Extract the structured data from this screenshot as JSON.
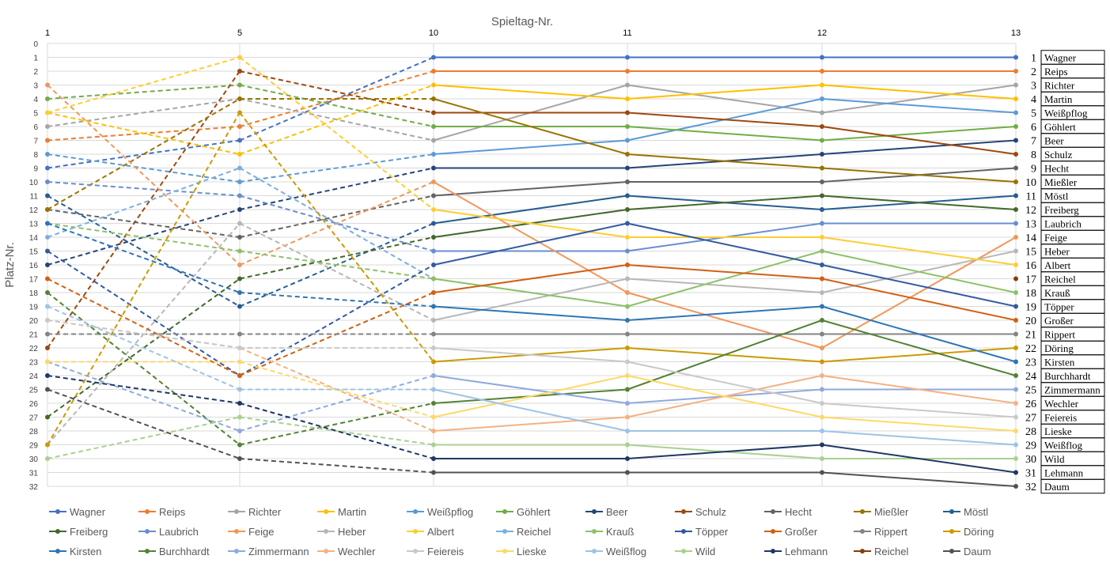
{
  "chart_data": {
    "type": "line",
    "title": "Spieltag-Nr.",
    "xlabel": "Spieltag-Nr.",
    "ylabel": "Platz-Nr.",
    "x": [
      1,
      5,
      10,
      11,
      12,
      13
    ],
    "x_tick_labels": [
      "1",
      "5",
      "10",
      "11",
      "12",
      "13"
    ],
    "ylim": [
      0,
      32
    ],
    "y_inverted": true,
    "y_ticks": [
      0,
      1,
      2,
      3,
      4,
      5,
      6,
      7,
      8,
      9,
      10,
      11,
      12,
      13,
      14,
      15,
      16,
      17,
      18,
      19,
      20,
      21,
      22,
      23,
      24,
      25,
      26,
      27,
      28,
      29,
      30,
      31,
      32
    ],
    "grid": true,
    "dashed_segments_until_x": 10,
    "legend_position": "bottom",
    "series": [
      {
        "name": "Wagner",
        "color": "#4472C4",
        "values": [
          9,
          7,
          1,
          1,
          1,
          1
        ]
      },
      {
        "name": "Reips",
        "color": "#ED7D31",
        "values": [
          7,
          6,
          2,
          2,
          2,
          2
        ]
      },
      {
        "name": "Richter",
        "color": "#A5A5A5",
        "values": [
          6,
          4,
          7,
          3,
          5,
          3
        ]
      },
      {
        "name": "Martin",
        "color": "#FFC000",
        "values": [
          5,
          8,
          3,
          4,
          3,
          4
        ]
      },
      {
        "name": "Weißpflog",
        "color": "#5B9BD5",
        "values": [
          8,
          10,
          8,
          7,
          4,
          5
        ]
      },
      {
        "name": "Göhlert",
        "color": "#70AD47",
        "values": [
          4,
          3,
          6,
          6,
          7,
          6
        ]
      },
      {
        "name": "Beer",
        "color": "#264478",
        "values": [
          16,
          12,
          9,
          9,
          8,
          7
        ]
      },
      {
        "name": "Schulz",
        "color": "#9E480E",
        "values": [
          22,
          2,
          5,
          5,
          6,
          8
        ]
      },
      {
        "name": "Hecht",
        "color": "#636363",
        "values": [
          12,
          14,
          11,
          10,
          10,
          9
        ]
      },
      {
        "name": "Mießler",
        "color": "#997300",
        "values": [
          12,
          4,
          4,
          8,
          9,
          10
        ]
      },
      {
        "name": "Möstl",
        "color": "#255E91",
        "values": [
          11,
          19,
          13,
          11,
          12,
          11
        ]
      },
      {
        "name": "Freiberg",
        "color": "#43682B",
        "values": [
          27,
          17,
          14,
          12,
          11,
          12
        ]
      },
      {
        "name": "Laubrich",
        "color": "#698ED0",
        "values": [
          10,
          11,
          15,
          15,
          13,
          13
        ]
      },
      {
        "name": "Feige",
        "color": "#F1975A",
        "values": [
          3,
          16,
          10,
          18,
          22,
          14
        ]
      },
      {
        "name": "Heber",
        "color": "#B7B7B7",
        "values": [
          29,
          13,
          20,
          17,
          18,
          15
        ]
      },
      {
        "name": "Albert",
        "color": "#FFCD33",
        "values": [
          5,
          1,
          12,
          14,
          14,
          16
        ]
      },
      {
        "name": "Reichel",
        "color": "#7CAFDD",
        "values": [
          14,
          9,
          17,
          null,
          null,
          null
        ]
      },
      {
        "name": "Krauß",
        "color": "#8CC168",
        "values": [
          13,
          15,
          17,
          19,
          15,
          18
        ]
      },
      {
        "name": "Töpper",
        "color": "#335AA1",
        "values": [
          15,
          24,
          16,
          13,
          16,
          19
        ]
      },
      {
        "name": "Großer",
        "color": "#D26012",
        "values": [
          17,
          24,
          18,
          16,
          17,
          20
        ]
      },
      {
        "name": "Rippert",
        "color": "#848484",
        "values": [
          21,
          21,
          21,
          21,
          21,
          21
        ]
      },
      {
        "name": "Döring",
        "color": "#CC9A00",
        "values": [
          29,
          5,
          23,
          22,
          23,
          22
        ]
      },
      {
        "name": "Kirsten",
        "color": "#2E75B6",
        "values": [
          13,
          18,
          19,
          20,
          19,
          23
        ]
      },
      {
        "name": "Burchhardt",
        "color": "#548235",
        "values": [
          18,
          29,
          26,
          25,
          20,
          24
        ]
      },
      {
        "name": "Zimmermann",
        "color": "#8FAADC",
        "values": [
          23,
          28,
          24,
          26,
          25,
          25
        ]
      },
      {
        "name": "Wechler",
        "color": "#F4B183",
        "values": [
          20,
          22,
          28,
          27,
          24,
          26
        ]
      },
      {
        "name": "Feiereis",
        "color": "#C9C9C9",
        "values": [
          20,
          22,
          22,
          23,
          26,
          27
        ]
      },
      {
        "name": "Lieske",
        "color": "#FFD966",
        "values": [
          23,
          23,
          27,
          24,
          27,
          28
        ]
      },
      {
        "name": "Weißflog",
        "color": "#9DC3E6",
        "values": [
          19,
          25,
          25,
          28,
          28,
          29
        ]
      },
      {
        "name": "Wild",
        "color": "#A9D18E",
        "values": [
          30,
          27,
          29,
          29,
          30,
          30
        ]
      },
      {
        "name": "Lehmann",
        "color": "#1F3864",
        "values": [
          24,
          26,
          30,
          30,
          29,
          31
        ]
      },
      {
        "name": "Reichel",
        "color": "#843C0C",
        "values": [
          null,
          null,
          null,
          null,
          null,
          17
        ]
      },
      {
        "name": "Daum",
        "color": "#525252",
        "values": [
          25,
          30,
          31,
          31,
          31,
          32
        ]
      }
    ]
  },
  "final_table": {
    "rows": [
      {
        "rank": "1",
        "name": "Wagner"
      },
      {
        "rank": "2",
        "name": "Reips"
      },
      {
        "rank": "3",
        "name": "Richter"
      },
      {
        "rank": "4",
        "name": "Martin"
      },
      {
        "rank": "5",
        "name": "Weißpflog"
      },
      {
        "rank": "6",
        "name": "Göhlert"
      },
      {
        "rank": "7",
        "name": "Beer"
      },
      {
        "rank": "8",
        "name": "Schulz"
      },
      {
        "rank": "9",
        "name": "Hecht"
      },
      {
        "rank": "10",
        "name": "Mießler"
      },
      {
        "rank": "11",
        "name": "Möstl"
      },
      {
        "rank": "12",
        "name": "Freiberg"
      },
      {
        "rank": "13",
        "name": "Laubrich"
      },
      {
        "rank": "14",
        "name": "Feige"
      },
      {
        "rank": "15",
        "name": "Heber"
      },
      {
        "rank": "16",
        "name": "Albert"
      },
      {
        "rank": "17",
        "name": "Reichel"
      },
      {
        "rank": "18",
        "name": "Krauß"
      },
      {
        "rank": "19",
        "name": "Töpper"
      },
      {
        "rank": "20",
        "name": "Großer"
      },
      {
        "rank": "21",
        "name": "Rippert"
      },
      {
        "rank": "22",
        "name": "Döring"
      },
      {
        "rank": "23",
        "name": "Kirsten"
      },
      {
        "rank": "24",
        "name": "Burchhardt"
      },
      {
        "rank": "25",
        "name": "Zimmermann"
      },
      {
        "rank": "26",
        "name": "Wechler"
      },
      {
        "rank": "27",
        "name": "Feiereis"
      },
      {
        "rank": "28",
        "name": "Lieske"
      },
      {
        "rank": "29",
        "name": "Weißflog"
      },
      {
        "rank": "30",
        "name": "Wild"
      },
      {
        "rank": "31",
        "name": "Lehmann"
      },
      {
        "rank": "32",
        "name": "Daum"
      }
    ]
  }
}
